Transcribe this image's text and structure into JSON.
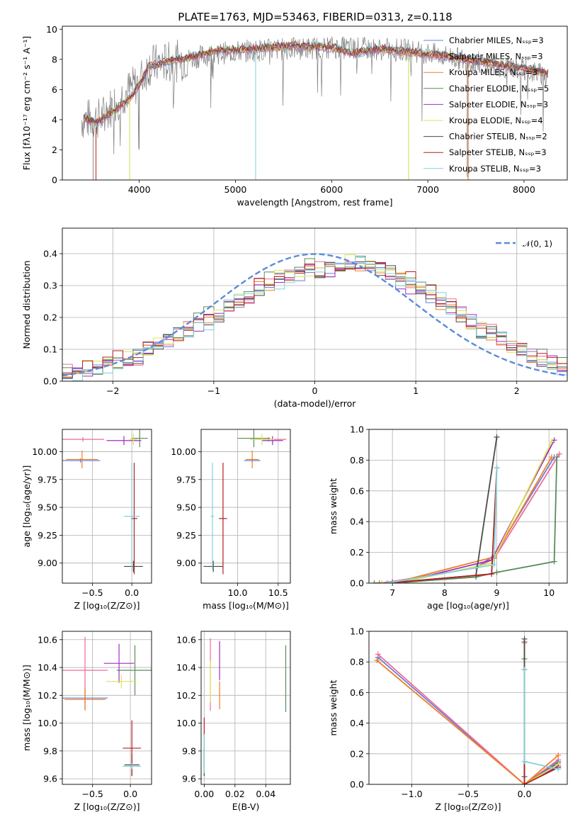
{
  "figure": {
    "title": "PLATE=1763, MJD=53463, FIBERID=0313, z=0.118"
  },
  "chart_data": [
    {
      "id": "spectrum",
      "type": "line",
      "xlabel": "wavelength [Angstrom, rest frame]",
      "ylabel": "Flux [fλ10⁻¹⁷ erg cm⁻² s⁻¹ A⁻¹]",
      "xlim": [
        3200,
        8450
      ],
      "ylim": [
        0,
        10.2
      ],
      "xticks": [
        4000,
        5000,
        6000,
        7000,
        8000
      ],
      "yticks": [
        0,
        2,
        4,
        6,
        8,
        10
      ],
      "legend_position": "upper right",
      "observed_color": "#808080",
      "observed_profile": [
        [
          3400,
          4.0
        ],
        [
          3600,
          4.1
        ],
        [
          3800,
          5.5
        ],
        [
          4000,
          6.5
        ],
        [
          4100,
          7.6
        ],
        [
          4400,
          7.9
        ],
        [
          4800,
          8.4
        ],
        [
          5200,
          8.6
        ],
        [
          5600,
          8.7
        ],
        [
          6000,
          8.8
        ],
        [
          6400,
          8.7
        ],
        [
          6800,
          8.6
        ],
        [
          7200,
          8.2
        ],
        [
          7600,
          7.7
        ],
        [
          8000,
          7.3
        ],
        [
          8200,
          7.0
        ]
      ],
      "model_profile": [
        [
          3420,
          4.1
        ],
        [
          3550,
          3.8
        ],
        [
          3700,
          4.4
        ],
        [
          3900,
          5.4
        ],
        [
          4000,
          6.3
        ],
        [
          4100,
          7.5
        ],
        [
          4300,
          7.9
        ],
        [
          4500,
          8.1
        ],
        [
          4800,
          8.6
        ],
        [
          5000,
          8.6
        ],
        [
          5200,
          8.7
        ],
        [
          5600,
          8.9
        ],
        [
          6000,
          8.8
        ],
        [
          6200,
          8.4
        ],
        [
          6500,
          8.7
        ],
        [
          6800,
          8.5
        ],
        [
          7200,
          8.2
        ],
        [
          7600,
          7.8
        ],
        [
          8000,
          7.4
        ],
        [
          8250,
          7.1
        ]
      ],
      "series": [
        {
          "name": "Chabrier MILES, Nₛₛₚ=3",
          "color": "#6a7fd6"
        },
        {
          "name": "Salpeter MILES, Nₛₛₚ=3",
          "color": "#ee6a9e"
        },
        {
          "name": "Kroupa MILES, Nₛₛₚ=3",
          "color": "#ee7e28"
        },
        {
          "name": "Chabrier ELODIE, Nₛₛₚ=5",
          "color": "#5c8a5c"
        },
        {
          "name": "Salpeter ELODIE, Nₛₛₚ=3",
          "color": "#9f2fbf"
        },
        {
          "name": "Kroupa ELODIE, Nₛₛₚ=4",
          "color": "#dbe557"
        },
        {
          "name": "Chabrier STELIB, Nₛₛₚ=2",
          "color": "#4a4a4a"
        },
        {
          "name": "Salpeter STELIB, Nₛₛₚ=3",
          "color": "#b22020"
        },
        {
          "name": "Kroupa STELIB, Nₛₛₚ=3",
          "color": "#7fd3d9"
        }
      ]
    },
    {
      "id": "residuals",
      "type": "line",
      "xlabel": "(data-model)/error",
      "ylabel": "Normed distribution",
      "xlim": [
        -2.5,
        2.5
      ],
      "ylim": [
        0,
        0.48
      ],
      "xticks": [
        -2,
        -1,
        0,
        1,
        2
      ],
      "yticks": [
        0.0,
        0.1,
        0.2,
        0.3,
        0.4
      ],
      "grid": true,
      "legend_position": "upper right",
      "reference": {
        "name": "𝒩(0, 1)",
        "color": "#5b8bd9",
        "mean": 0,
        "sigma": 1
      },
      "hist_base": [
        0.03,
        0.03,
        0.04,
        0.04,
        0.05,
        0.06,
        0.07,
        0.08,
        0.1,
        0.11,
        0.13,
        0.15,
        0.16,
        0.18,
        0.19,
        0.21,
        0.23,
        0.25,
        0.27,
        0.29,
        0.31,
        0.32,
        0.33,
        0.34,
        0.34,
        0.35,
        0.35,
        0.36,
        0.37,
        0.37,
        0.36,
        0.35,
        0.34,
        0.32,
        0.31,
        0.29,
        0.27,
        0.25,
        0.23,
        0.21,
        0.18,
        0.16,
        0.15,
        0.13,
        0.11,
        0.1,
        0.08,
        0.07,
        0.06,
        0.05
      ],
      "hist_offsets": [
        0.0,
        0.02,
        -0.015,
        0.03,
        -0.025,
        0.01,
        -0.005,
        0.018,
        -0.02,
        0.012
      ]
    },
    {
      "id": "age-vs-Z",
      "type": "scatter",
      "xlabel": "Z [log₁₀(Z/Z⊙)]",
      "ylabel": "age  [log₁₀(age/yr)]",
      "xlim": [
        -0.88,
        0.25
      ],
      "ylim": [
        8.82,
        10.2
      ],
      "xticks": [
        -0.5,
        0.0
      ],
      "yticks": [
        9.0,
        9.25,
        9.5,
        9.75,
        10.0
      ],
      "grid": true,
      "points": [
        {
          "x": -0.65,
          "y": 9.92,
          "xerr": 0.25,
          "yerr": 0.02,
          "color": "#6a7fd6"
        },
        {
          "x": -0.62,
          "y": 10.11,
          "xerr": 0.27,
          "yerr": 0.02,
          "color": "#ee6a9e"
        },
        {
          "x": -0.63,
          "y": 9.93,
          "xerr": 0.2,
          "yerr": 0.08,
          "color": "#ee7e28"
        },
        {
          "x": 0.1,
          "y": 10.12,
          "xerr": 0.1,
          "yerr": 0.08,
          "color": "#5c8a5c"
        },
        {
          "x": -0.1,
          "y": 10.1,
          "xerr": 0.22,
          "yerr": 0.04,
          "color": "#9f2fbf"
        },
        {
          "x": 0.02,
          "y": 10.11,
          "xerr": 0.05,
          "yerr": 0.05,
          "color": "#dbe557"
        },
        {
          "x": 0.02,
          "y": 8.97,
          "xerr": 0.12,
          "yerr": 0.05,
          "color": "#4a4a4a"
        },
        {
          "x": 0.03,
          "y": 9.4,
          "xerr": 0.04,
          "yerr": 0.5,
          "color": "#b22020"
        },
        {
          "x": 0.0,
          "y": 9.42,
          "xerr": 0.1,
          "yerr": 0.48,
          "color": "#7fd3d9"
        }
      ]
    },
    {
      "id": "age-vs-mass",
      "type": "scatter",
      "xlabel": "mass [log₁₀(M/M⊙)]",
      "ylabel": "",
      "xlim": [
        9.55,
        10.65
      ],
      "ylim": [
        8.82,
        10.2
      ],
      "xticks": [
        10.0,
        10.5
      ],
      "yticks": [
        9.0,
        9.25,
        9.5,
        9.75,
        10.0
      ],
      "grid": true,
      "points": [
        {
          "x": 10.18,
          "y": 9.92,
          "xerr": 0.1,
          "yerr": 0.02,
          "color": "#6a7fd6"
        },
        {
          "x": 10.38,
          "y": 10.11,
          "xerr": 0.22,
          "yerr": 0.02,
          "color": "#ee6a9e"
        },
        {
          "x": 10.18,
          "y": 9.93,
          "xerr": 0.08,
          "yerr": 0.08,
          "color": "#ee7e28"
        },
        {
          "x": 10.2,
          "y": 10.12,
          "xerr": 0.2,
          "yerr": 0.08,
          "color": "#5c8a5c"
        },
        {
          "x": 10.43,
          "y": 10.1,
          "xerr": 0.13,
          "yerr": 0.04,
          "color": "#9f2fbf"
        },
        {
          "x": 10.3,
          "y": 10.11,
          "xerr": 0.15,
          "yerr": 0.05,
          "color": "#dbe557"
        },
        {
          "x": 9.7,
          "y": 8.97,
          "xerr": 0.12,
          "yerr": 0.05,
          "color": "#4a4a4a"
        },
        {
          "x": 9.82,
          "y": 9.4,
          "xerr": 0.05,
          "yerr": 0.5,
          "color": "#b22020"
        },
        {
          "x": 9.69,
          "y": 9.42,
          "xerr": 0.02,
          "yerr": 0.48,
          "color": "#7fd3d9"
        }
      ]
    },
    {
      "id": "mass-weight-vs-age",
      "type": "line",
      "xlabel": "age  [log₁₀(age/yr)]",
      "ylabel": "mass weight",
      "xlim": [
        6.55,
        10.35
      ],
      "ylim": [
        0,
        1.0
      ],
      "xticks": [
        7,
        8,
        9,
        10
      ],
      "yticks": [
        0.0,
        0.2,
        0.4,
        0.6,
        0.8,
        1.0
      ],
      "grid": true,
      "series": [
        {
          "color": "#6a7fd6",
          "x": [
            6.75,
            7.0,
            8.6,
            8.95,
            10.1
          ],
          "y": [
            0.0,
            0.01,
            0.1,
            0.18,
            0.82
          ]
        },
        {
          "color": "#ee6a9e",
          "x": [
            6.75,
            7.0,
            8.6,
            8.95,
            10.2
          ],
          "y": [
            0.0,
            0.01,
            0.1,
            0.16,
            0.84
          ]
        },
        {
          "color": "#ee7e28",
          "x": [
            6.75,
            7.0,
            8.95,
            10.05
          ],
          "y": [
            0.0,
            0.0,
            0.17,
            0.82
          ]
        },
        {
          "color": "#5c8a5c",
          "x": [
            6.65,
            7.0,
            8.6,
            9.0,
            10.1,
            10.15
          ],
          "y": [
            0.0,
            0.0,
            0.04,
            0.07,
            0.14,
            0.82
          ]
        },
        {
          "color": "#9f2fbf",
          "x": [
            6.8,
            7.1,
            8.9,
            10.1
          ],
          "y": [
            0.0,
            0.0,
            0.15,
            0.93
          ]
        },
        {
          "color": "#dbe557",
          "x": [
            6.8,
            7.1,
            8.9,
            10.05
          ],
          "y": [
            0.0,
            0.0,
            0.13,
            0.92
          ]
        },
        {
          "color": "#4a4a4a",
          "x": [
            6.9,
            8.6,
            9.0
          ],
          "y": [
            0.0,
            0.05,
            0.95
          ]
        },
        {
          "color": "#b22020",
          "x": [
            6.9,
            8.9,
            9.0
          ],
          "y": [
            0.0,
            0.06,
            0.75
          ]
        },
        {
          "color": "#7fd3d9",
          "x": [
            6.9,
            8.6,
            8.95,
            9.0
          ],
          "y": [
            0.0,
            0.1,
            0.12,
            0.75
          ]
        }
      ]
    },
    {
      "id": "mass-vs-Z",
      "type": "scatter",
      "xlabel": "Z [log₁₀(Z/Z⊙)]",
      "ylabel": "mass [log₁₀(M/M⊙)]",
      "xlim": [
        -0.9,
        0.28
      ],
      "ylim": [
        9.56,
        10.66
      ],
      "xticks": [
        -0.5,
        0.0
      ],
      "yticks": [
        9.6,
        9.8,
        10.0,
        10.2,
        10.4,
        10.6
      ],
      "grid": true,
      "points": [
        {
          "x": -0.6,
          "y": 10.18,
          "xerr": 0.3,
          "yerr": 0.08,
          "color": "#6a7fd6"
        },
        {
          "x": -0.6,
          "y": 10.38,
          "xerr": 0.3,
          "yerr": 0.24,
          "color": "#ee6a9e"
        },
        {
          "x": -0.6,
          "y": 10.17,
          "xerr": 0.27,
          "yerr": 0.08,
          "color": "#ee7e28"
        },
        {
          "x": 0.06,
          "y": 10.38,
          "xerr": 0.24,
          "yerr": 0.18,
          "color": "#5c8a5c"
        },
        {
          "x": -0.15,
          "y": 10.43,
          "xerr": 0.2,
          "yerr": 0.14,
          "color": "#9f2fbf"
        },
        {
          "x": -0.12,
          "y": 10.3,
          "xerr": 0.2,
          "yerr": 0.05,
          "color": "#dbe557"
        },
        {
          "x": 0.02,
          "y": 9.7,
          "xerr": 0.1,
          "yerr": 0.08,
          "color": "#4a4a4a"
        },
        {
          "x": 0.02,
          "y": 9.82,
          "xerr": 0.12,
          "yerr": 0.2,
          "color": "#b22020"
        },
        {
          "x": 0.02,
          "y": 9.69,
          "xerr": 0.12,
          "yerr": 0.02,
          "color": "#7fd3d9"
        }
      ]
    },
    {
      "id": "mass-vs-ebv",
      "type": "scatter",
      "xlabel": "E(B-V)",
      "ylabel": "",
      "xlim": [
        -0.002,
        0.056
      ],
      "ylim": [
        9.56,
        10.66
      ],
      "xticks": [
        0.0,
        0.02,
        0.04
      ],
      "yticks": [
        9.6,
        9.8,
        10.0,
        10.2,
        10.4,
        10.6
      ],
      "grid": true,
      "points": [
        {
          "x": 0.0,
          "y": 9.8,
          "yerr": 0.12,
          "color": "#6a7fd6"
        },
        {
          "x": 0.004,
          "y": 10.35,
          "yerr": 0.26,
          "color": "#ee6a9e"
        },
        {
          "x": 0.01,
          "y": 10.2,
          "yerr": 0.1,
          "color": "#ee7e28"
        },
        {
          "x": 0.053,
          "y": 10.32,
          "yerr": 0.24,
          "color": "#5c8a5c"
        },
        {
          "x": 0.01,
          "y": 10.45,
          "yerr": 0.14,
          "color": "#9f2fbf"
        },
        {
          "x": 0.004,
          "y": 10.3,
          "yerr": 0.15,
          "color": "#dbe557"
        },
        {
          "x": 0.0,
          "y": 9.72,
          "yerr": 0.1,
          "color": "#4a4a4a"
        },
        {
          "x": 0.0,
          "y": 9.98,
          "yerr": 0.06,
          "color": "#b22020"
        },
        {
          "x": 0.0,
          "y": 9.78,
          "yerr": 0.14,
          "color": "#7fd3d9"
        }
      ]
    },
    {
      "id": "mass-weight-vs-Z",
      "type": "line",
      "xlabel": "Z [log₁₀(Z/Z⊙)]",
      "ylabel": "mass weight",
      "xlim": [
        -1.38,
        0.38
      ],
      "ylim": [
        0,
        1.0
      ],
      "xticks": [
        -1.0,
        -0.5,
        0.0
      ],
      "yticks": [
        0.0,
        0.2,
        0.4,
        0.6,
        0.8,
        1.0
      ],
      "grid": true,
      "series": [
        {
          "color": "#6a7fd6",
          "x": [
            -1.3,
            0.0,
            0.3
          ],
          "y": [
            0.83,
            0.0,
            0.15
          ]
        },
        {
          "color": "#ee6a9e",
          "x": [
            -1.3,
            0.0,
            0.3
          ],
          "y": [
            0.85,
            0.0,
            0.16
          ]
        },
        {
          "color": "#ee7e28",
          "x": [
            -1.31,
            0.0,
            0.3
          ],
          "y": [
            0.81,
            0.0,
            0.19
          ]
        },
        {
          "color": "#5c8a5c",
          "x": [
            0.0,
            0.0,
            0.3
          ],
          "y": [
            0.82,
            0.0,
            0.14
          ]
        },
        {
          "color": "#9f2fbf",
          "x": [
            0.0,
            0.0,
            0.3
          ],
          "y": [
            0.93,
            0.0,
            0.12
          ]
        },
        {
          "color": "#dbe557",
          "x": [
            0.0,
            0.0,
            0.3
          ],
          "y": [
            0.92,
            0.0,
            0.13
          ]
        },
        {
          "color": "#4a4a4a",
          "x": [
            0.0,
            0.0
          ],
          "y": [
            0.95,
            0.05
          ]
        },
        {
          "color": "#b22020",
          "x": [
            0.0,
            0.0,
            0.3
          ],
          "y": [
            0.75,
            0.0,
            0.11
          ]
        },
        {
          "color": "#7fd3d9",
          "x": [
            0.0,
            0.0,
            0.3
          ],
          "y": [
            0.75,
            0.15,
            0.1
          ]
        }
      ]
    }
  ]
}
